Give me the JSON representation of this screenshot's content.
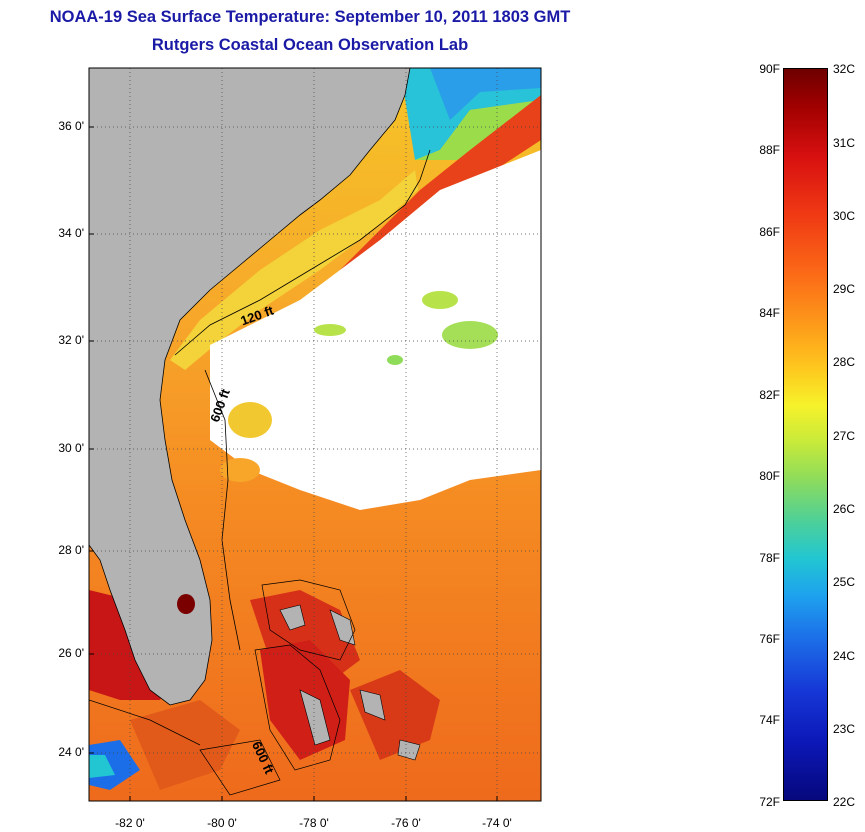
{
  "title": {
    "line1": "NOAA-19 Sea Surface Temperature:  September 10, 2011 1803 GMT",
    "line2": "Rutgers Coastal Ocean Observation Lab"
  },
  "map": {
    "lat_ticks": [
      "36 0'",
      "34 0'",
      "32 0'",
      "30 0'",
      "28 0'",
      "26 0'",
      "24 0'"
    ],
    "lon_ticks": [
      "-82 0'",
      "-80 0'",
      "-78 0'",
      "-76 0'",
      "-74 0'"
    ],
    "contour_labels": [
      "120 ft",
      "600 ft",
      "600 ft"
    ],
    "colors": {
      "land": "#b3b3b3",
      "cloud": "#ffffff",
      "warm": "#f07a1c",
      "hot": "#d81818"
    }
  },
  "colorbar": {
    "fahrenheit": [
      "90F",
      "88F",
      "86F",
      "84F",
      "82F",
      "80F",
      "78F",
      "76F",
      "74F",
      "72F"
    ],
    "celsius": [
      "32C",
      "31C",
      "30C",
      "29C",
      "28C",
      "27C",
      "26C",
      "25C",
      "24C",
      "23C",
      "22C"
    ]
  }
}
